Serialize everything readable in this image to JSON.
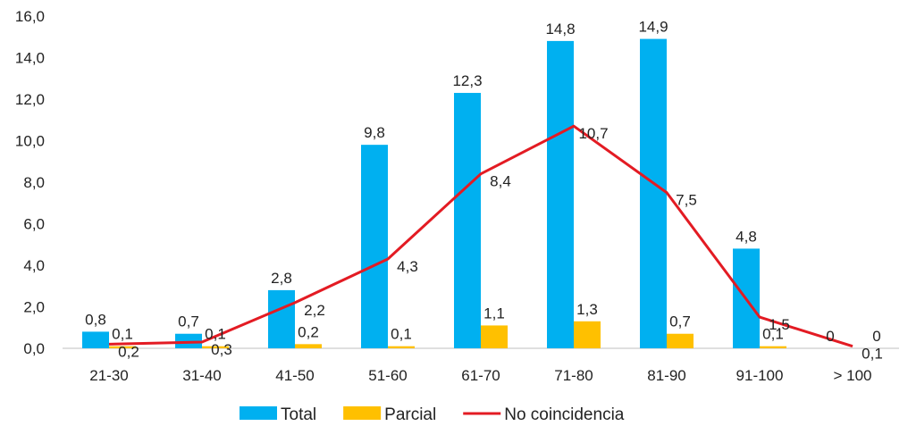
{
  "chart_data": {
    "type": "bar",
    "categories": [
      "21-30",
      "31-40",
      "41-50",
      "51-60",
      "61-70",
      "71-80",
      "81-90",
      "91-100",
      "> 100"
    ],
    "y_ticks": [
      "0,0",
      "2,0",
      "4,0",
      "6,0",
      "8,0",
      "10,0",
      "12,0",
      "14,0",
      "16,0"
    ],
    "ylim": [
      0,
      16
    ],
    "grid": false,
    "legend_position": "bottom",
    "series": [
      {
        "name": "Total",
        "kind": "bar",
        "color": "#00B0F0",
        "values": [
          0.8,
          0.7,
          2.8,
          9.8,
          12.3,
          14.8,
          14.9,
          4.8,
          0
        ],
        "labels": [
          "0,8",
          "0,7",
          "2,8",
          "9,8",
          "12,3",
          "14,8",
          "14,9",
          "4,8",
          "0"
        ]
      },
      {
        "name": "Parcial",
        "kind": "bar",
        "color": "#FFC000",
        "values": [
          0.1,
          0.1,
          0.2,
          0.1,
          1.1,
          1.3,
          0.7,
          0.1,
          0
        ],
        "labels": [
          "0,1",
          "0,1",
          "0,2",
          "0,1",
          "1,1",
          "1,3",
          "0,7",
          "0,1",
          "0"
        ]
      },
      {
        "name": "No coincidencia",
        "kind": "line",
        "color": "#E31B23",
        "values": [
          0.2,
          0.3,
          2.2,
          4.3,
          8.4,
          10.7,
          7.5,
          1.5,
          0.1
        ],
        "labels": [
          "0,2",
          "0,3",
          "2,2",
          "4,3",
          "8,4",
          "10,7",
          "7,5",
          "1,5",
          "0,1"
        ]
      }
    ]
  }
}
